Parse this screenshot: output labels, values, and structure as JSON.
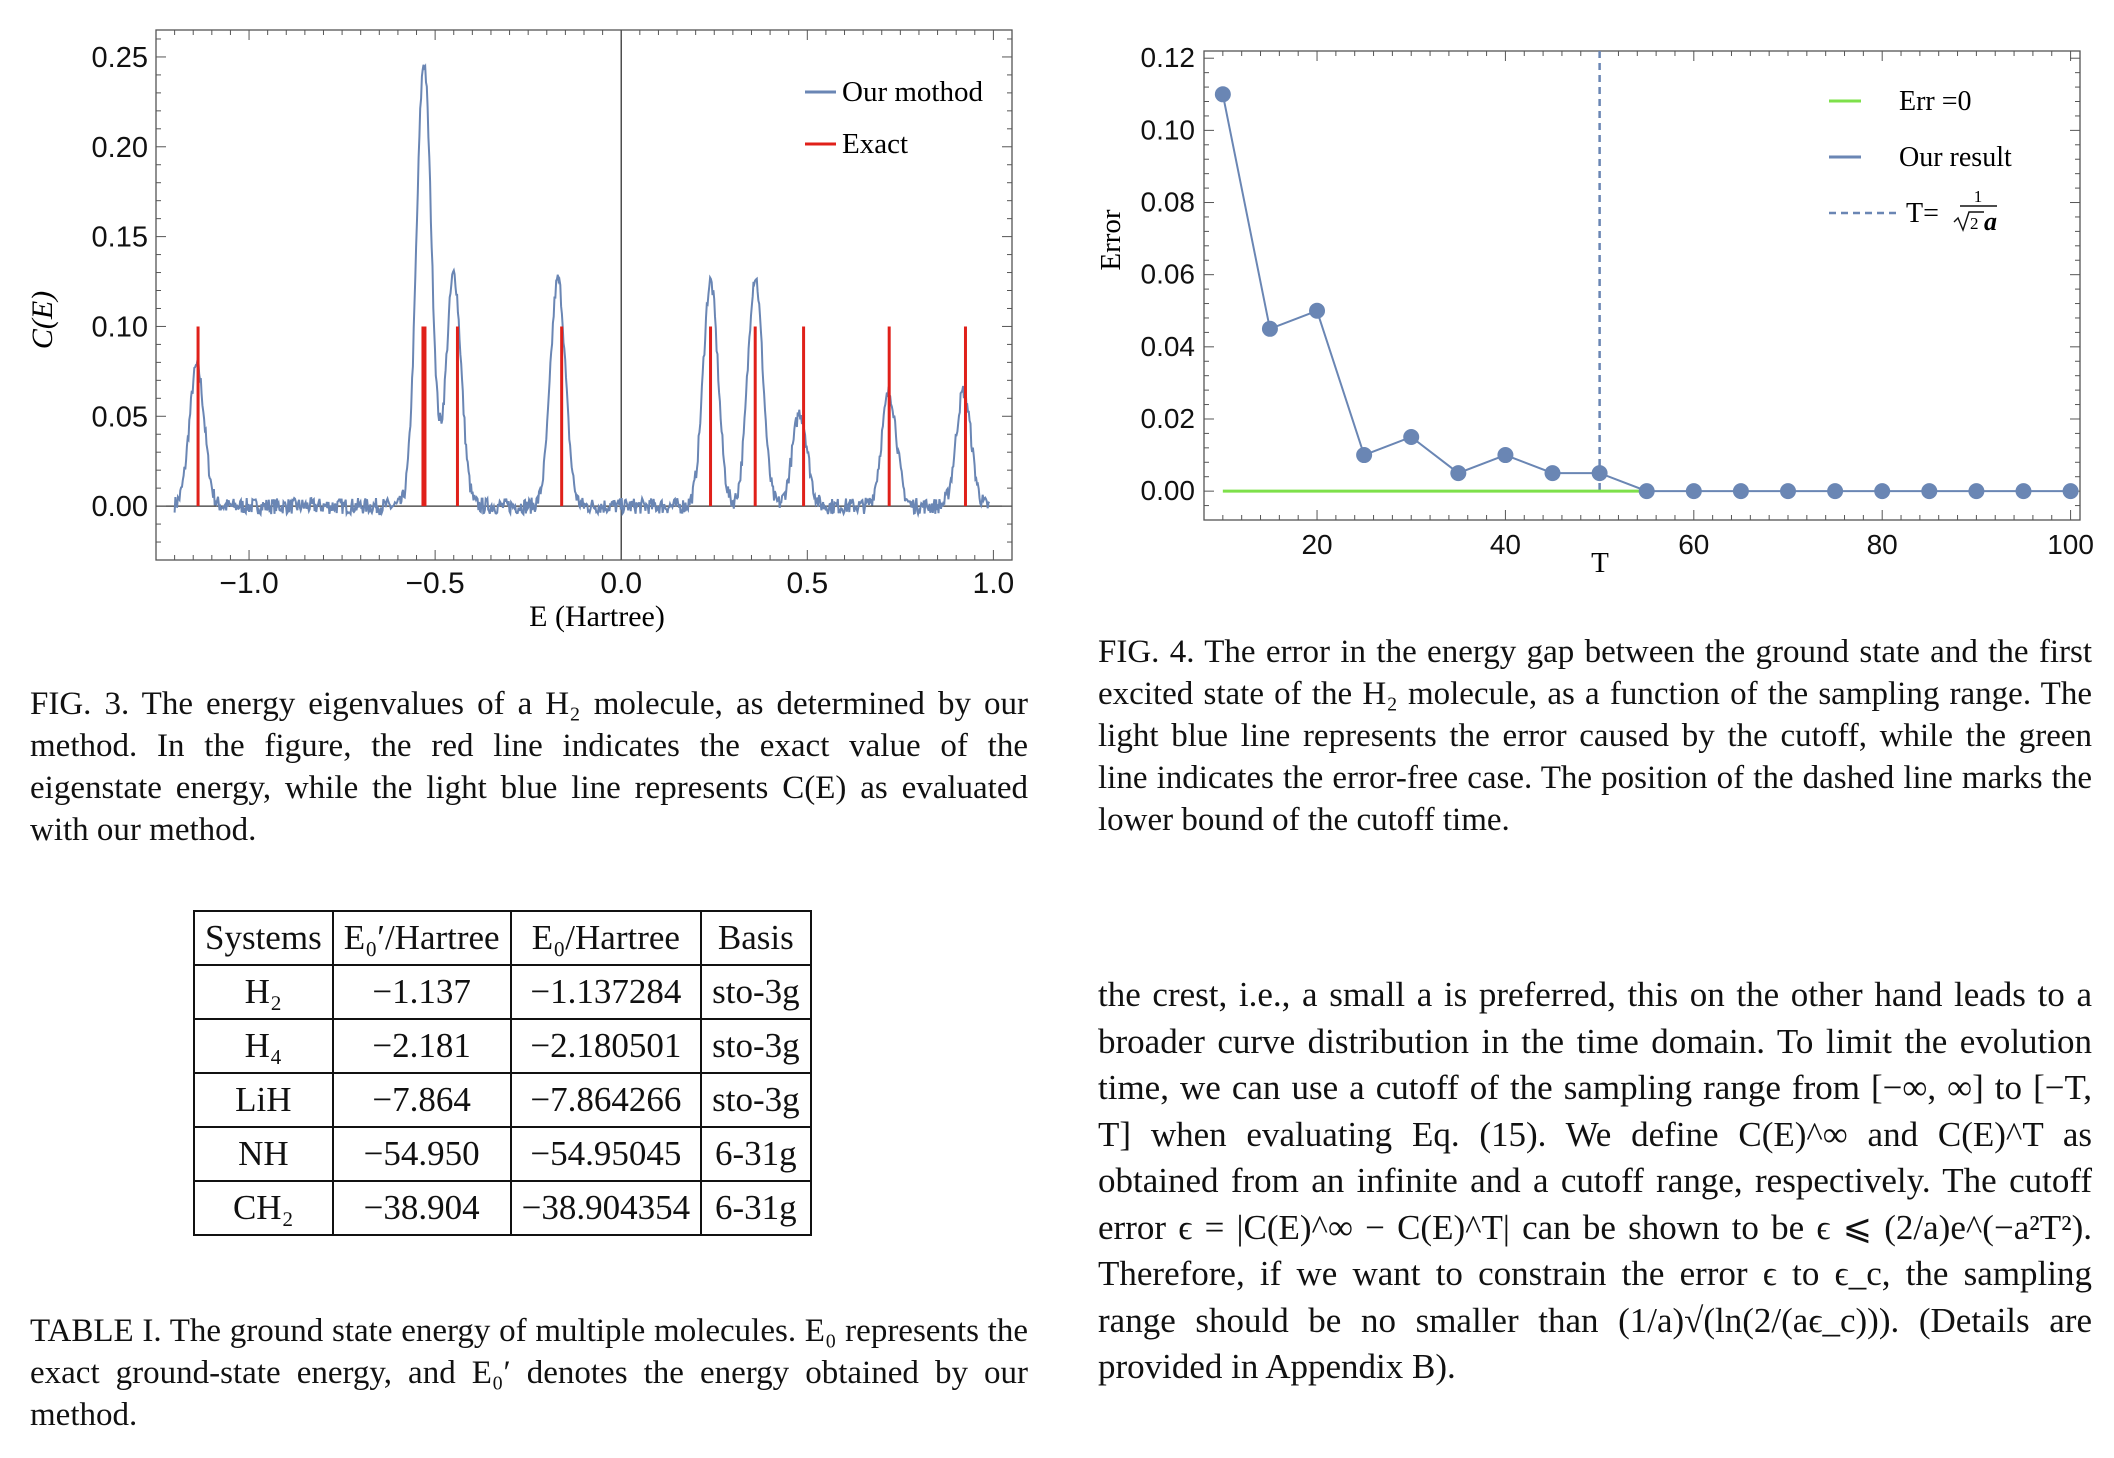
{
  "fig3": {
    "caption": "FIG. 3.  The energy eigenvalues of a H₂ molecule, as determined by our method. In the figure, the red line indicates the exact value of the eigenstate energy, while the light blue line represents C(E) as evaluated with our method.",
    "legend_method": "Our mothod",
    "legend_exact": "Exact",
    "xlabel": "E (Hartree)",
    "ylabel": "C(E)",
    "xticks": [
      "−1.0",
      "−0.5",
      "0.0",
      "0.5",
      "1.0"
    ],
    "yticks": [
      "0.00",
      "0.05",
      "0.10",
      "0.15",
      "0.20",
      "0.25"
    ]
  },
  "fig4": {
    "caption": "FIG. 4.  The error in the energy gap between the ground state and the first excited state of the H₂ molecule, as a function of the sampling range. The light blue line represents the error caused by the cutoff, while the green line indicates the error-free case. The position of the dashed line marks the lower bound of the cutoff time.",
    "legend_err0": "Err =0",
    "legend_result": "Our result",
    "legend_T_prefix": "T=",
    "xlabel": "T",
    "ylabel": "Error",
    "xticks": [
      "20",
      "40",
      "60",
      "80",
      "100"
    ],
    "yticks": [
      "0.00",
      "0.02",
      "0.04",
      "0.06",
      "0.08",
      "0.10",
      "0.12"
    ]
  },
  "table1": {
    "headers": [
      "Systems",
      "E₀′/Hartree",
      "E₀/Hartree",
      "Basis"
    ],
    "rows": [
      [
        "H₂",
        "−1.137",
        "−1.137284",
        "sto-3g"
      ],
      [
        "H₄",
        "−2.181",
        "−2.180501",
        "sto-3g"
      ],
      [
        "LiH",
        "−7.864",
        "−7.864266",
        "sto-3g"
      ],
      [
        "NH",
        "−54.950",
        "−54.95045",
        "6-31g"
      ],
      [
        "CH₂",
        "−38.904",
        "−38.904354",
        "6-31g"
      ]
    ],
    "caption": "TABLE I. The ground state energy of multiple molecules. E₀ represents the exact ground-state energy, and E₀′ denotes the energy obtained by our method."
  },
  "body": {
    "paragraph": "the crest, i.e., a small a is preferred, this on the other hand leads to a broader curve distribution in the time domain. To limit the evolution time, we can use a cutoff of the sampling range from [−∞, ∞] to [−T, T] when evaluating Eq. (15). We define C(E)^∞ and C(E)^T as obtained from an infinite and a cutoff range, respectively. The cutoff error ϵ = |C(E)^∞ − C(E)^T| can be shown to be ϵ ⩽ (2/a)e^(−a²T²). Therefore, if we want to constrain the error ϵ to ϵ_c, the sampling range should be no smaller than (1/a)√(ln(2/(aϵ_c))). (Details are provided in Appendix B)."
  },
  "chart_data": [
    {
      "type": "line",
      "title": "",
      "xlabel": "E (Hartree)",
      "ylabel": "C(E)",
      "xlim": [
        -1.25,
        1.05
      ],
      "ylim": [
        -0.03,
        0.265
      ],
      "series": [
        {
          "name": "Our mothod",
          "color": "#6a86b4",
          "peaks": [
            {
              "x": -1.14,
              "y": 0.078
            },
            {
              "x": -0.53,
              "y": 0.247
            },
            {
              "x": -0.45,
              "y": 0.129
            },
            {
              "x": -0.17,
              "y": 0.126
            },
            {
              "x": 0.24,
              "y": 0.125
            },
            {
              "x": 0.36,
              "y": 0.128
            },
            {
              "x": 0.48,
              "y": 0.052
            },
            {
              "x": 0.72,
              "y": 0.063
            },
            {
              "x": 0.92,
              "y": 0.064
            }
          ]
        },
        {
          "name": "Exact",
          "color": "#e0201a",
          "x": [
            -1.137,
            -0.53,
            -0.44,
            -0.16,
            0.24,
            0.36,
            0.49,
            0.72,
            0.925
          ],
          "y": [
            0.1,
            0.1,
            0.1,
            0.1,
            0.1,
            0.1,
            0.1,
            0.1,
            0.1
          ]
        }
      ],
      "legend": "top-right"
    },
    {
      "type": "line",
      "title": "",
      "xlabel": "T",
      "ylabel": "Error",
      "xlim": [
        8,
        101
      ],
      "ylim": [
        -0.008,
        0.122
      ],
      "series": [
        {
          "name": "Our result",
          "color": "#6a86b4",
          "x": [
            10,
            15,
            20,
            25,
            30,
            35,
            40,
            45,
            50,
            55,
            60,
            65,
            70,
            75,
            80,
            85,
            90,
            95,
            100
          ],
          "y": [
            0.11,
            0.045,
            0.05,
            0.01,
            0.015,
            0.005,
            0.01,
            0.005,
            0.005,
            0.0,
            0.0,
            0.0,
            0.0,
            0.0,
            0.0,
            0.0,
            0.0,
            0.0,
            0.0
          ]
        },
        {
          "name": "Err =0",
          "color": "#7ee04a",
          "x": [
            10,
            55
          ],
          "y": [
            0.0,
            0.0
          ]
        }
      ],
      "vline": {
        "x": 50,
        "color": "#6a86b4",
        "style": "dashed"
      },
      "legend": "top-right"
    }
  ]
}
